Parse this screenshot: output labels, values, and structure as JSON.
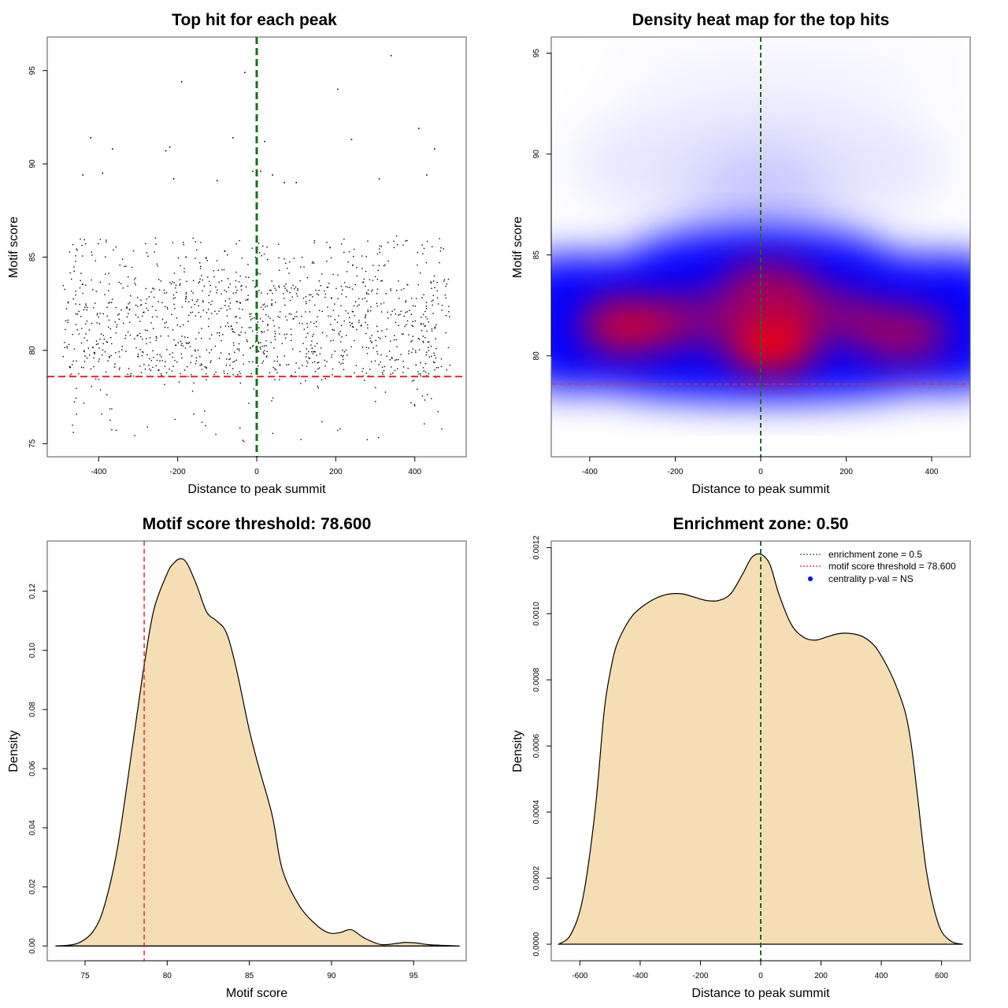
{
  "chart_data": [
    {
      "type": "scatter",
      "title": "Top hit for each peak",
      "xlabel": "Distance to peak summit",
      "ylabel": "Motif score",
      "xlim": [
        -530,
        530
      ],
      "ylim": [
        74.3,
        96.8
      ],
      "x_ticks": [
        -400,
        -200,
        0,
        200,
        400
      ],
      "x_tick_labels": [
        "-400",
        "-200",
        "0",
        "200",
        "400"
      ],
      "y_ticks": [
        75,
        80,
        85,
        90,
        95
      ],
      "y_tick_labels": [
        "75",
        "80",
        "85",
        "90",
        "95"
      ],
      "hlines": [
        {
          "y": 78.6,
          "color": "#e8272a",
          "style": "dashed"
        }
      ],
      "vlines": [
        {
          "x": 0,
          "color": "#1a6e1a",
          "style": "dashed"
        }
      ],
      "points": [
        {
          "x": 340,
          "y": 95.8
        },
        {
          "x": -30,
          "y": 94.9
        },
        {
          "x": -190,
          "y": 94.4
        },
        {
          "x": 205,
          "y": 94.0
        },
        {
          "x": 410,
          "y": 91.9
        },
        {
          "x": -420,
          "y": 91.4
        },
        {
          "x": -60,
          "y": 91.4
        },
        {
          "x": 240,
          "y": 91.3
        },
        {
          "x": 20,
          "y": 91.2
        },
        {
          "x": -220,
          "y": 90.9
        },
        {
          "x": 450,
          "y": 90.8
        },
        {
          "x": -365,
          "y": 90.8
        },
        {
          "x": -230,
          "y": 90.7
        },
        {
          "x": 10,
          "y": 89.6
        },
        {
          "x": -10,
          "y": 89.6
        },
        {
          "x": -440,
          "y": 89.4
        },
        {
          "x": 40,
          "y": 89.4
        },
        {
          "x": 430,
          "y": 89.4
        },
        {
          "x": -390,
          "y": 89.5
        },
        {
          "x": -210,
          "y": 89.2
        },
        {
          "x": -100,
          "y": 89.1
        },
        {
          "x": 70,
          "y": 89.0
        },
        {
          "x": 310,
          "y": 89.2
        },
        {
          "x": 100,
          "y": 89.0
        }
      ],
      "bulk": {
        "n": 1300,
        "x_range": [
          -490,
          490
        ],
        "y_mode": 81.0,
        "y_range": [
          75.0,
          89.0
        ]
      }
    },
    {
      "type": "heatmap",
      "title": "Density heat map for the top hits",
      "xlabel": "Distance to peak summit",
      "ylabel": "Motif score",
      "xlim": [
        -490,
        490
      ],
      "ylim": [
        75.0,
        95.8
      ],
      "x_ticks": [
        -400,
        -200,
        0,
        200,
        400
      ],
      "x_tick_labels": [
        "-400",
        "-200",
        "0",
        "200",
        "400"
      ],
      "y_ticks": [
        80,
        85,
        90,
        95
      ],
      "y_tick_labels": [
        "80",
        "85",
        "90",
        "95"
      ],
      "color_scale": [
        "#ffffff",
        "#0000ff",
        "#ff0000"
      ],
      "hlines": [
        {
          "y": 78.6,
          "color": "#e8272a",
          "style": "dashed"
        }
      ],
      "vlines": [
        {
          "x": 0,
          "color": "#1a6e1a",
          "style": "dashed"
        }
      ],
      "density_peaks": [
        {
          "x": 25,
          "y": 80.5,
          "weight": 1.0
        },
        {
          "x": -310,
          "y": 81.5,
          "weight": 0.8
        },
        {
          "x": 20,
          "y": 83.3,
          "weight": 0.65
        },
        {
          "x": 330,
          "y": 81.1,
          "weight": 0.6
        },
        {
          "x": -150,
          "y": 81.8,
          "weight": 0.5
        },
        {
          "x": 170,
          "y": 82.0,
          "weight": 0.5
        }
      ]
    },
    {
      "type": "area",
      "title": "Motif score threshold: 78.600",
      "xlabel": "Motif score",
      "ylabel": "Density",
      "xlim": [
        72.7,
        98.2
      ],
      "ylim": [
        -0.005,
        0.137
      ],
      "x_ticks": [
        75,
        80,
        85,
        90,
        95
      ],
      "x_tick_labels": [
        "75",
        "80",
        "85",
        "90",
        "95"
      ],
      "y_ticks": [
        0.0,
        0.02,
        0.04,
        0.06,
        0.08,
        0.1,
        0.12
      ],
      "y_tick_labels": [
        "0.00",
        "0.02",
        "0.04",
        "0.06",
        "0.08",
        "0.10",
        "0.12"
      ],
      "fill": "#f5deb3",
      "vlines": [
        {
          "x": 78.6,
          "color": "#e8272a",
          "style": "dashed"
        }
      ],
      "x": [
        73.2,
        74.5,
        75.5,
        76.2,
        77.0,
        78.0,
        78.6,
        79.2,
        80.0,
        80.4,
        80.8,
        81.2,
        81.8,
        82.4,
        83.0,
        83.6,
        84.2,
        85.0,
        85.6,
        86.4,
        87.0,
        88.0,
        89.0,
        89.8,
        90.5,
        91.2,
        92.0,
        93.0,
        94.0,
        94.5,
        95.2,
        96.0,
        97.8
      ],
      "y": [
        0.0,
        0.0008,
        0.005,
        0.014,
        0.034,
        0.072,
        0.095,
        0.114,
        0.126,
        0.1295,
        0.131,
        0.1295,
        0.122,
        0.113,
        0.11,
        0.106,
        0.094,
        0.073,
        0.06,
        0.044,
        0.026,
        0.014,
        0.0075,
        0.0045,
        0.0045,
        0.0055,
        0.0027,
        0.0005,
        0.0009,
        0.0012,
        0.001,
        0.0004,
        0.0
      ]
    },
    {
      "type": "area",
      "title": "Enrichment zone: 0.50",
      "xlabel": "Distance to peak summit",
      "ylabel": "Density",
      "xlim": [
        -695,
        695
      ],
      "ylim": [
        -5e-05,
        0.00122
      ],
      "x_ticks": [
        -600,
        -400,
        -200,
        0,
        200,
        400,
        600
      ],
      "x_tick_labels": [
        "-600",
        "-400",
        "-200",
        "0",
        "200",
        "400",
        "600"
      ],
      "y_ticks": [
        0.0,
        0.0002,
        0.0004,
        0.0006,
        0.0008,
        0.001,
        0.0012
      ],
      "y_tick_labels": [
        "0.0000",
        "0.0002",
        "0.0004",
        "0.0006",
        "0.0008",
        "0.0010",
        "0.0012"
      ],
      "fill": "#f5deb3",
      "vlines": [
        {
          "x": 0,
          "color": "#1a6e1a",
          "style": "dashed"
        }
      ],
      "x": [
        -670,
        -630,
        -590,
        -550,
        -520,
        -500,
        -480,
        -450,
        -420,
        -380,
        -340,
        -300,
        -260,
        -220,
        -180,
        -140,
        -100,
        -60,
        -30,
        0,
        30,
        60,
        100,
        140,
        180,
        220,
        260,
        300,
        340,
        380,
        420,
        450,
        480,
        500,
        520,
        550,
        590,
        630,
        670
      ],
      "y": [
        0.0,
        3e-05,
        0.00014,
        0.0004,
        0.0007,
        0.00082,
        0.0009,
        0.00096,
        0.001,
        0.00103,
        0.00105,
        0.00106,
        0.00106,
        0.00105,
        0.00104,
        0.00104,
        0.00106,
        0.00112,
        0.00117,
        0.00118,
        0.00115,
        0.00106,
        0.00097,
        0.00093,
        0.00092,
        0.00093,
        0.00094,
        0.00094,
        0.00093,
        0.0009,
        0.00084,
        0.00078,
        0.0007,
        0.0006,
        0.00045,
        0.00022,
        6e-05,
        1e-05,
        0.0
      ],
      "legend": {
        "placement": "top-right",
        "entries": [
          {
            "label": "enrichment zone = 0.5",
            "color": "#1a6e1a",
            "kind": "dotted-line"
          },
          {
            "label": "motif score threshold = 78.600",
            "color": "#e8272a",
            "kind": "dotted-line"
          },
          {
            "label": "centrality p-val = NS",
            "color": "#0000ff",
            "kind": "point"
          }
        ]
      }
    }
  ]
}
